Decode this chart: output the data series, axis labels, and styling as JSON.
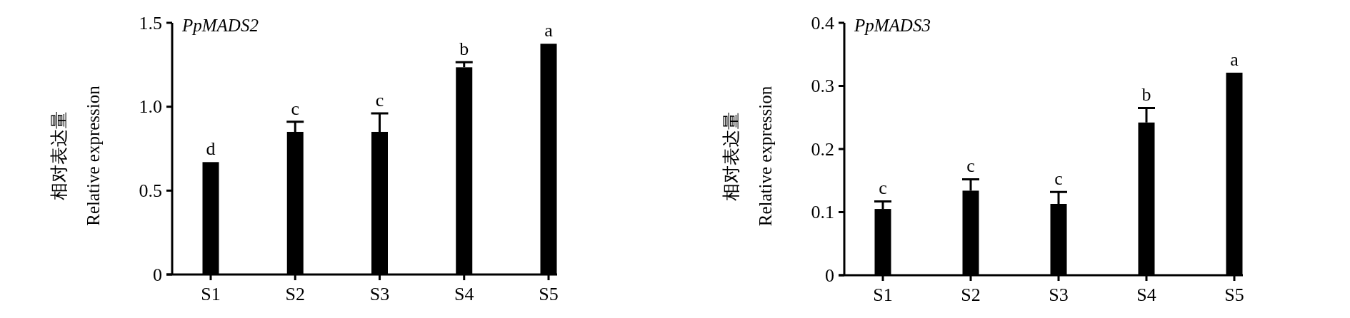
{
  "chart_data": [
    {
      "type": "bar",
      "title": "PpMADS2",
      "ylabel": "相对表达量\nRelative expression",
      "categories": [
        "S1",
        "S2",
        "S3",
        "S4",
        "S5"
      ],
      "values": [
        0.67,
        0.85,
        0.85,
        1.235,
        1.375
      ],
      "errors": [
        null,
        0.06,
        0.11,
        0.03,
        null
      ],
      "colors": [
        "#000000",
        "#000000",
        "#000000",
        "#000000",
        "#000000"
      ],
      "ylim": [
        0,
        1.5
      ],
      "yticks": [
        0,
        {
          "value": 0.5,
          "label": "0.5"
        },
        {
          "value": 1,
          "label": "1.0"
        },
        {
          "value": 1.5,
          "label": "1.5"
        }
      ],
      "annotations": [
        {
          "text": "d",
          "x": "S1",
          "y": 0.67
        },
        {
          "text": "c",
          "x": "S2",
          "y": 0.91
        },
        {
          "text": "c",
          "x": "S3",
          "y": 0.96
        },
        {
          "text": "b",
          "x": "S4",
          "y": 1.265
        },
        {
          "text": "a",
          "x": "S5",
          "y": 1.375
        }
      ]
    },
    {
      "type": "bar",
      "title": "PpMADS3",
      "ylabel": "相对表达量\nRelative expression",
      "categories": [
        "S1",
        "S2",
        "S3",
        "S4",
        "S5"
      ],
      "values": [
        0.105,
        0.134,
        0.113,
        0.242,
        0.321
      ],
      "errors": [
        0.012,
        0.018,
        0.019,
        0.023,
        null
      ],
      "colors": [
        "#000000",
        "#000000",
        "#000000",
        "#000000",
        "#000000"
      ],
      "ylim": [
        0,
        0.4
      ],
      "yticks": [
        0,
        0.1,
        0.2,
        0.3,
        0.4
      ],
      "annotations": [
        {
          "text": "c",
          "x": "S1",
          "y": 0.117
        },
        {
          "text": "c",
          "x": "S2",
          "y": 0.152
        },
        {
          "text": "c",
          "x": "S3",
          "y": 0.132
        },
        {
          "text": "b",
          "x": "S4",
          "y": 0.265
        },
        {
          "text": "a",
          "x": "S5",
          "y": 0.321
        }
      ]
    }
  ]
}
